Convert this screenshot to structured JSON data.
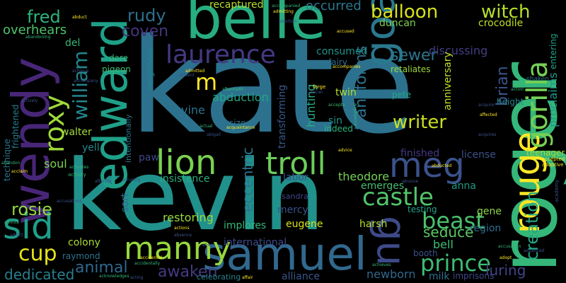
{
  "words": [
    {
      "id": "kate",
      "text": "kate",
      "color": "#2c728e"
    },
    {
      "id": "kevin",
      "text": "kevin",
      "color": "#21918c"
    },
    {
      "id": "roger",
      "text": "roger",
      "color": "#35b779"
    },
    {
      "id": "belle",
      "text": "belle",
      "color": "#27ad81"
    },
    {
      "id": "wendy",
      "text": "wendy",
      "color": "#482677"
    },
    {
      "id": "edward",
      "text": "edward",
      "color": "#1fa088"
    },
    {
      "id": "samuel",
      "text": "samuel",
      "color": "#31688e"
    },
    {
      "id": "goat",
      "text": "goat",
      "color": "#2a788e"
    },
    {
      "id": "rouge",
      "text": "rouge",
      "color": "#fde725"
    },
    {
      "id": "gorilla",
      "text": "gorilla",
      "color": "#75d054"
    },
    {
      "id": "manny",
      "text": "manny",
      "color": "#98d83e"
    },
    {
      "id": "lion",
      "text": "lion",
      "color": "#7ad151"
    },
    {
      "id": "troll",
      "text": "troll",
      "color": "#6ccd5a"
    },
    {
      "id": "meg",
      "text": "meg",
      "color": "#3b528b"
    },
    {
      "id": "laurence",
      "text": "laurence",
      "color": "#443983"
    },
    {
      "id": "gu",
      "text": "gu",
      "color": "#3e4a89"
    },
    {
      "id": "sid",
      "text": "sid",
      "color": "#1f9e89"
    },
    {
      "id": "roxy",
      "text": "roxy",
      "color": "#9fda3a"
    },
    {
      "id": "william",
      "text": "william",
      "color": "#24868e"
    },
    {
      "id": "castle",
      "text": "castle",
      "color": "#52c569"
    },
    {
      "id": "beast",
      "text": "beast",
      "color": "#4ac16d"
    },
    {
      "id": "prince",
      "text": "prince",
      "color": "#3fbc73"
    },
    {
      "id": "balloon",
      "text": "balloon",
      "color": "#d8e219"
    },
    {
      "id": "witch",
      "text": "witch",
      "color": "#b5de2b"
    },
    {
      "id": "creation",
      "text": "creation",
      "color": "#22a785"
    },
    {
      "id": "writer",
      "text": "writer",
      "color": "#c8e020"
    },
    {
      "id": "cup",
      "text": "cup",
      "color": "#e5e419"
    },
    {
      "id": "fred",
      "text": "fred",
      "color": "#2db27d"
    },
    {
      "id": "rosie",
      "text": "rosie",
      "color": "#90d743"
    },
    {
      "id": "animal",
      "text": "animal",
      "color": "#31688e"
    },
    {
      "id": "awaken",
      "text": "awaken",
      "color": "#443a83"
    },
    {
      "id": "dedicated",
      "text": "dedicated",
      "color": "#277f8e"
    },
    {
      "id": "rudy",
      "text": "rudy",
      "color": "#2e6f8e"
    },
    {
      "id": "coven",
      "text": "coven",
      "color": "#46337e"
    },
    {
      "id": "brian",
      "text": "brian",
      "color": "#3a548c"
    },
    {
      "id": "sewer",
      "text": "sewer",
      "color": "#2a778e"
    },
    {
      "id": "transforms",
      "text": "transforms",
      "color": "#2d718e"
    },
    {
      "id": "overhears",
      "text": "overhears",
      "color": "#4ec36b"
    },
    {
      "id": "seduce",
      "text": "seduce",
      "color": "#5cc863"
    },
    {
      "id": "newborn",
      "text": "newborn",
      "color": "#31678e"
    },
    {
      "id": "luring",
      "text": "luring",
      "color": "#414487"
    },
    {
      "id": "m",
      "text": "m",
      "color": "#fde725"
    },
    {
      "id": "recaptured",
      "text": "recaptured",
      "color": "#b8de29"
    },
    {
      "id": "occurred",
      "text": "occurred",
      "color": "#2a788e"
    },
    {
      "id": "crocodile",
      "text": "crocodile",
      "color": "#bddf26"
    },
    {
      "id": "duncan",
      "text": "duncan",
      "color": "#7fd34e"
    },
    {
      "id": "discussing",
      "text": "discussing",
      "color": "#433d84"
    },
    {
      "id": "anniversary",
      "text": "anniversary",
      "color": "#c2df23"
    },
    {
      "id": "proclaims",
      "text": "proclaims",
      "color": "#1f9a8a"
    },
    {
      "id": "consumed",
      "text": "consumed",
      "color": "#1f948c"
    },
    {
      "id": "abduction",
      "text": "abduction",
      "color": "#21a685"
    },
    {
      "id": "transforming",
      "text": "transforming",
      "color": "#38598c"
    },
    {
      "id": "hunting",
      "text": "hunting",
      "color": "#28ae80"
    },
    {
      "id": "eccentric",
      "text": "eccentric",
      "color": "#2c738e"
    },
    {
      "id": "vine",
      "text": "vine",
      "color": "#2c728e"
    },
    {
      "id": "insistence",
      "text": "insistence",
      "color": "#29af7f"
    },
    {
      "id": "restoring",
      "text": "restoring",
      "color": "#9bd93c"
    },
    {
      "id": "mercy",
      "text": "mercy",
      "color": "#3b528b"
    },
    {
      "id": "implores",
      "text": "implores",
      "color": "#35b779"
    },
    {
      "id": "eugene",
      "text": "eugene",
      "color": "#d5e21a"
    },
    {
      "id": "harsh",
      "text": "harsh",
      "color": "#b5de2b"
    },
    {
      "id": "finished",
      "text": "finished",
      "color": "#443983"
    },
    {
      "id": "anna",
      "text": "anna",
      "color": "#1e9c89"
    },
    {
      "id": "theodore",
      "text": "theodore",
      "color": "#75d054"
    },
    {
      "id": "labor",
      "text": "labor",
      "color": "#3b528b"
    },
    {
      "id": "emerges",
      "text": "emerges",
      "color": "#42be71"
    },
    {
      "id": "castleyell",
      "text": "yell",
      "color": "#23898e"
    },
    {
      "id": "soul",
      "text": "soul",
      "color": "#7ad151"
    },
    {
      "id": "walter",
      "text": "walter",
      "color": "#a2da37"
    },
    {
      "id": "paw",
      "text": "paw",
      "color": "#3e4989"
    },
    {
      "id": "sort",
      "text": "sort",
      "color": "#31688e"
    },
    {
      "id": "colony",
      "text": "colony",
      "color": "#a8db34"
    },
    {
      "id": "raymond",
      "text": "raymond",
      "color": "#2c738e"
    },
    {
      "id": "international",
      "text": "international",
      "color": "#3e4a89"
    },
    {
      "id": "alliance",
      "text": "alliance",
      "color": "#39568c"
    },
    {
      "id": "milk",
      "text": "milk",
      "color": "#2d708e"
    },
    {
      "id": "imprisons",
      "text": "imprisons",
      "color": "#3f4788"
    },
    {
      "id": "booth",
      "text": "booth",
      "color": "#3b528b"
    },
    {
      "id": "bell",
      "text": "bell",
      "color": "#3dbc74"
    },
    {
      "id": "gene",
      "text": "gene",
      "color": "#8bd646"
    },
    {
      "id": "region",
      "text": "region",
      "color": "#2e6e8e"
    },
    {
      "id": "testing",
      "text": "testing",
      "color": "#1fa088"
    },
    {
      "id": "twin",
      "text": "twin",
      "color": "#b2dd2d"
    },
    {
      "id": "pete",
      "text": "pete",
      "color": "#22a884"
    },
    {
      "id": "sin",
      "text": "sin",
      "color": "#1f958b"
    },
    {
      "id": "indeed",
      "text": "indeed",
      "color": "#2db27d"
    },
    {
      "id": "size",
      "text": "size",
      "color": "#2b758e"
    },
    {
      "id": "height",
      "text": "height",
      "color": "#23888e"
    },
    {
      "id": "teenager",
      "text": "teenager",
      "color": "#a5db36"
    },
    {
      "id": "license",
      "text": "license",
      "color": "#3b518b"
    },
    {
      "id": "retaliates",
      "text": "retaliates",
      "color": "#9dd93b"
    },
    {
      "id": "fairy",
      "text": "fairy",
      "color": "#2e6d8e"
    },
    {
      "id": "del",
      "text": "del",
      "color": "#35b779"
    },
    {
      "id": "dare",
      "text": "dare",
      "color": "#35b779"
    },
    {
      "id": "pigeon",
      "text": "pigeon",
      "color": "#3fbc73"
    },
    {
      "id": "neighbour",
      "text": "neighbour",
      "color": "#25848e"
    },
    {
      "id": "intentionally",
      "text": "intentionally",
      "color": "#2b748e"
    },
    {
      "id": "technique",
      "text": "technique",
      "color": "#2c728e"
    },
    {
      "id": "frightened",
      "text": "frightened",
      "color": "#287c8e"
    },
    {
      "id": "entering",
      "text": "entering",
      "color": "#20a386"
    },
    {
      "id": "sandra",
      "text": "sandra",
      "color": "#3f4788"
    },
    {
      "id": "celebrating",
      "text": "celebrating",
      "color": "#25848e"
    },
    {
      "id": "shaken",
      "text": "shaken",
      "color": "#2a788e"
    },
    {
      "id": "accepted",
      "text": "accepted",
      "color": "#fde725"
    },
    {
      "id": "adoptive",
      "text": "adoptive",
      "color": "#fde725"
    },
    {
      "id": "academy",
      "text": "academy",
      "color": "#3b528b"
    },
    {
      "id": "acquires",
      "text": "acquires",
      "color": "#3b528b"
    },
    {
      "id": "activity",
      "text": "activity",
      "color": "#35b779"
    },
    {
      "id": "activates",
      "text": "activates",
      "color": "#35b779"
    },
    {
      "id": "accepts",
      "text": "accepts",
      "color": "#3fbc73"
    },
    {
      "id": "advice",
      "text": "advice",
      "color": "#fde725"
    },
    {
      "id": "abduct",
      "text": "abduct",
      "color": "#fde725"
    },
    {
      "id": "abortion",
      "text": "abortion",
      "color": "#3b528b"
    },
    {
      "id": "accused",
      "text": "accused",
      "color": "#fde725"
    },
    {
      "id": "afterlife",
      "text": "afterlife",
      "color": "#3b528b"
    },
    {
      "id": "adopt",
      "text": "adopt",
      "color": "#fde725"
    },
    {
      "id": "abuse",
      "text": "abuse",
      "color": "#3b528b"
    },
    {
      "id": "advanced",
      "text": "advanced",
      "color": "#3b528b"
    },
    {
      "id": "accidentally",
      "text": "accidentally",
      "color": "#35b779"
    },
    {
      "id": "acting",
      "text": "acting",
      "color": "#3b528b"
    },
    {
      "id": "affair",
      "text": "affair",
      "color": "#fde725"
    },
    {
      "id": "acknowledges",
      "text": "acknowledges",
      "color": "#35b779"
    },
    {
      "id": "achieve",
      "text": "achieve",
      "color": "#3b528b"
    },
    {
      "id": "action",
      "text": "action",
      "color": "#35b779"
    },
    {
      "id": "african",
      "text": "african",
      "color": "#3b528b"
    },
    {
      "id": "forge",
      "text": "forge",
      "color": "#fde725"
    },
    {
      "id": "accompany",
      "text": "accompany",
      "color": "#3b528b"
    },
    {
      "id": "admitting",
      "text": "admitting",
      "color": "#fde725"
    },
    {
      "id": "accompanied",
      "text": "accompanied",
      "color": "#35b779"
    },
    {
      "id": "accompanies",
      "text": "accompanies",
      "color": "#fde725"
    },
    {
      "id": "advent",
      "text": "advent",
      "color": "#3b528b"
    },
    {
      "id": "abandoning",
      "text": "abandoning",
      "color": "#35b779"
    },
    {
      "id": "accusing",
      "text": "accusing",
      "color": "#3b528b"
    },
    {
      "id": "aftermath",
      "text": "aftermath",
      "color": "#35b779"
    },
    {
      "id": "affected",
      "text": "affected",
      "color": "#fde725"
    },
    {
      "id": "abusive",
      "text": "abusive",
      "color": "#3b528b"
    },
    {
      "id": "actual",
      "text": "actual",
      "color": "#35b779"
    },
    {
      "id": "acquaintance",
      "text": "acquaintance",
      "color": "#fde725"
    },
    {
      "id": "abigail",
      "text": "abigail",
      "color": "#3b528b"
    },
    {
      "id": "accomplice",
      "text": "accomplice",
      "color": "#35b779"
    },
    {
      "id": "actively",
      "text": "actively",
      "color": "#3b528b"
    },
    {
      "id": "admitted",
      "text": "admitted",
      "color": "#fde725"
    },
    {
      "id": "abandon",
      "text": "abandon",
      "color": "#35b779"
    },
    {
      "id": "acclaim",
      "text": "acclaim",
      "color": "#fde725"
    },
    {
      "id": "absence",
      "text": "absence",
      "color": "#3b528b"
    },
    {
      "id": "admits",
      "text": "admits",
      "color": "#35b779"
    },
    {
      "id": "actions",
      "text": "actions",
      "color": "#fde725"
    },
    {
      "id": "addict",
      "text": "addict",
      "color": "#3b528b"
    },
    {
      "id": "achieve2",
      "text": "achieves",
      "color": "#35b779"
    },
    {
      "id": "abducted",
      "text": "abducted",
      "color": "#fde725"
    },
    {
      "id": "accusation",
      "text": "accusation",
      "color": "#35b779"
    },
    {
      "id": "acquire",
      "text": "acquire",
      "color": "#3b528b"
    },
    {
      "id": "accidentally2",
      "text": "accidental",
      "color": "#fde725"
    },
    {
      "id": "accusations",
      "text": "accusations",
      "color": "#3b528b"
    }
  ]
}
